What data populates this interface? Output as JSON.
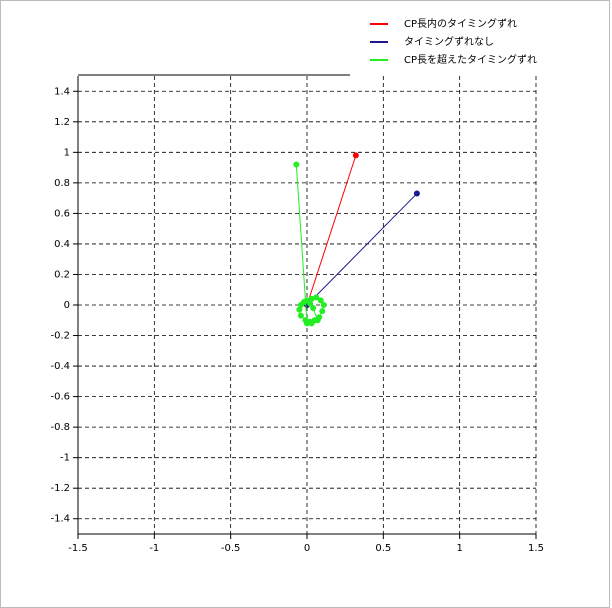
{
  "chart_data": {
    "type": "line",
    "series": [
      {
        "name": "CP長内のタイミングずれ",
        "color": "#ff0000",
        "x": [
          0,
          0.32
        ],
        "values": [
          0,
          0.98
        ]
      },
      {
        "name": "タイミングずれなし",
        "color": "#1a1a8c",
        "x": [
          0,
          0.72
        ],
        "values": [
          0,
          0.73
        ]
      },
      {
        "name": "CP長を超えたタイミングずれ",
        "color": "#22ee22",
        "x": [
          0.03,
          0.06,
          0.09,
          0.11,
          0.1,
          0.08,
          0.05,
          0.02,
          -0.01,
          -0.04,
          -0.05,
          -0.04,
          -0.02,
          0.0,
          0.02,
          0.04,
          0.07,
          0.03,
          0.0,
          -0.07
        ],
        "values": [
          0.04,
          0.05,
          0.03,
          0.0,
          -0.04,
          -0.08,
          -0.1,
          -0.11,
          -0.1,
          -0.07,
          -0.03,
          0.0,
          0.02,
          0.03,
          0.01,
          -0.02,
          -0.1,
          -0.12,
          -0.12,
          0.92
        ]
      }
    ],
    "xlim": [
      -1.5,
      1.5
    ],
    "xticks": [
      -1.5,
      -1,
      -0.5,
      0,
      0.5,
      1,
      1.5
    ],
    "ylim": [
      -1.5,
      1.5
    ],
    "yticks": [
      -1.4,
      -1.2,
      -1,
      -0.8,
      -0.6,
      -0.4,
      -0.2,
      0,
      0.2,
      0.4,
      0.6,
      0.8,
      1,
      1.2,
      1.4
    ],
    "grid": true,
    "legend": "top-right"
  }
}
